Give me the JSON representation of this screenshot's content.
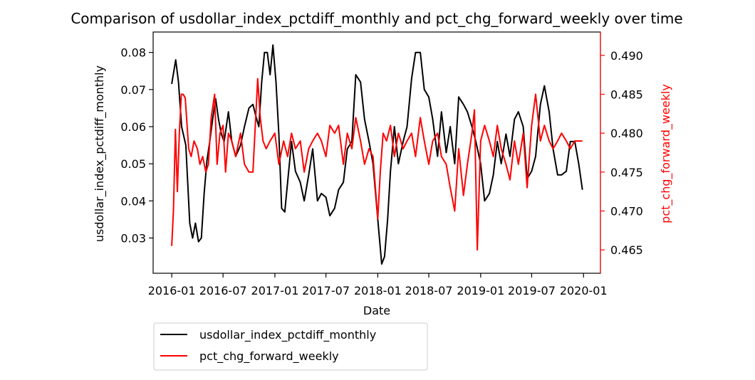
{
  "chart_data": {
    "type": "line",
    "title": "Comparison of usdollar_index_pctdiff_monthly and pct_chg_forward_weekly over time",
    "xlabel": "Date",
    "ylabel_left": "usdollar_index_pctdiff_monthly",
    "ylabel_right": "pct_chg_forward_weekly",
    "x_ticks": [
      "2016-01",
      "2016-07",
      "2017-01",
      "2017-07",
      "2018-01",
      "2018-07",
      "2019-01",
      "2019-07",
      "2020-01"
    ],
    "xlim": [
      "2015-10-27",
      "2020-03-01"
    ],
    "y_left_ticks": [
      0.03,
      0.04,
      0.05,
      0.06,
      0.07,
      0.08
    ],
    "y_left_lim": [
      0.0205,
      0.0855
    ],
    "y_right_ticks": [
      0.465,
      0.47,
      0.475,
      0.48,
      0.485,
      0.49
    ],
    "y_right_lim": [
      0.462,
      0.493
    ],
    "legend_placement": "below-left",
    "grid": false,
    "series": [
      {
        "name": "usdollar_index_pctdiff_monthly",
        "axis": "left",
        "color": "#000000",
        "x": [
          "2016-01-01",
          "2016-01-15",
          "2016-01-25",
          "2016-02-05",
          "2016-02-20",
          "2016-03-05",
          "2016-03-15",
          "2016-03-25",
          "2016-04-05",
          "2016-04-15",
          "2016-04-25",
          "2016-05-05",
          "2016-05-15",
          "2016-05-25",
          "2016-06-05",
          "2016-06-15",
          "2016-06-25",
          "2016-07-05",
          "2016-07-20",
          "2016-08-01",
          "2016-08-15",
          "2016-09-01",
          "2016-09-15",
          "2016-10-01",
          "2016-10-15",
          "2016-10-25",
          "2016-11-05",
          "2016-11-15",
          "2016-11-25",
          "2016-12-05",
          "2016-12-15",
          "2016-12-25",
          "2017-01-05",
          "2017-01-15",
          "2017-01-25",
          "2017-02-05",
          "2017-02-15",
          "2017-03-01",
          "2017-03-15",
          "2017-04-01",
          "2017-04-15",
          "2017-05-01",
          "2017-05-15",
          "2017-06-01",
          "2017-06-15",
          "2017-07-01",
          "2017-07-15",
          "2017-08-01",
          "2017-08-15",
          "2017-09-01",
          "2017-09-15",
          "2017-10-01",
          "2017-10-15",
          "2017-11-01",
          "2017-11-15",
          "2017-12-01",
          "2017-12-15",
          "2018-01-01",
          "2018-01-15",
          "2018-01-25",
          "2018-02-05",
          "2018-02-15",
          "2018-03-01",
          "2018-03-15",
          "2018-04-01",
          "2018-04-15",
          "2018-05-01",
          "2018-05-15",
          "2018-06-01",
          "2018-06-15",
          "2018-07-01",
          "2018-07-15",
          "2018-08-01",
          "2018-08-15",
          "2018-09-01",
          "2018-09-15",
          "2018-10-01",
          "2018-10-15",
          "2018-11-01",
          "2018-11-15",
          "2018-12-01",
          "2018-12-15",
          "2019-01-01",
          "2019-01-15",
          "2019-02-01",
          "2019-02-15",
          "2019-03-01",
          "2019-03-15",
          "2019-04-01",
          "2019-04-15",
          "2019-05-01",
          "2019-05-15",
          "2019-06-01",
          "2019-06-15",
          "2019-07-01",
          "2019-07-15",
          "2019-08-01",
          "2019-08-15",
          "2019-09-01",
          "2019-09-15",
          "2019-10-01",
          "2019-10-15",
          "2019-11-01",
          "2019-11-15",
          "2019-12-01",
          "2019-12-15",
          "2019-12-28"
        ],
        "values": [
          0.0715,
          0.078,
          0.072,
          0.06,
          0.055,
          0.034,
          0.03,
          0.034,
          0.029,
          0.03,
          0.042,
          0.051,
          0.056,
          0.062,
          0.0675,
          0.062,
          0.058,
          0.056,
          0.064,
          0.056,
          0.052,
          0.055,
          0.06,
          0.065,
          0.066,
          0.063,
          0.06,
          0.072,
          0.08,
          0.08,
          0.074,
          0.082,
          0.072,
          0.058,
          0.038,
          0.037,
          0.045,
          0.056,
          0.048,
          0.045,
          0.04,
          0.047,
          0.054,
          0.04,
          0.042,
          0.041,
          0.036,
          0.038,
          0.043,
          0.045,
          0.054,
          0.056,
          0.074,
          0.072,
          0.062,
          0.056,
          0.05,
          0.035,
          0.023,
          0.025,
          0.035,
          0.048,
          0.06,
          0.05,
          0.056,
          0.06,
          0.073,
          0.08,
          0.08,
          0.07,
          0.068,
          0.062,
          0.052,
          0.064,
          0.053,
          0.06,
          0.05,
          0.068,
          0.066,
          0.064,
          0.06,
          0.056,
          0.05,
          0.04,
          0.042,
          0.047,
          0.056,
          0.05,
          0.058,
          0.052,
          0.062,
          0.064,
          0.06,
          0.046,
          0.048,
          0.052,
          0.066,
          0.071,
          0.064,
          0.054,
          0.047,
          0.047,
          0.048,
          0.056,
          0.056,
          0.05,
          0.043
        ]
      },
      {
        "name": "pct_chg_forward_weekly",
        "axis": "right",
        "color": "#ff0000",
        "x": [
          "2016-01-01",
          "2016-01-07",
          "2016-01-14",
          "2016-01-21",
          "2016-01-28",
          "2016-02-04",
          "2016-02-11",
          "2016-02-18",
          "2016-03-01",
          "2016-03-10",
          "2016-03-20",
          "2016-04-01",
          "2016-04-10",
          "2016-04-20",
          "2016-05-01",
          "2016-05-10",
          "2016-05-20",
          "2016-06-01",
          "2016-06-10",
          "2016-06-20",
          "2016-07-01",
          "2016-07-10",
          "2016-07-20",
          "2016-08-01",
          "2016-08-15",
          "2016-09-01",
          "2016-09-15",
          "2016-10-01",
          "2016-10-15",
          "2016-11-01",
          "2016-11-10",
          "2016-11-20",
          "2016-12-01",
          "2016-12-15",
          "2017-01-01",
          "2017-01-15",
          "2017-02-01",
          "2017-02-15",
          "2017-03-01",
          "2017-03-15",
          "2017-04-01",
          "2017-04-15",
          "2017-05-01",
          "2017-05-15",
          "2017-06-01",
          "2017-06-15",
          "2017-07-01",
          "2017-07-15",
          "2017-08-01",
          "2017-08-15",
          "2017-09-01",
          "2017-09-15",
          "2017-10-01",
          "2017-10-15",
          "2017-11-01",
          "2017-11-15",
          "2017-12-01",
          "2017-12-15",
          "2018-01-01",
          "2018-01-10",
          "2018-01-20",
          "2018-02-01",
          "2018-02-15",
          "2018-03-01",
          "2018-03-15",
          "2018-04-01",
          "2018-04-15",
          "2018-05-01",
          "2018-05-15",
          "2018-06-01",
          "2018-06-15",
          "2018-07-01",
          "2018-07-15",
          "2018-08-01",
          "2018-08-15",
          "2018-09-01",
          "2018-09-15",
          "2018-10-01",
          "2018-10-15",
          "2018-11-01",
          "2018-11-15",
          "2018-12-01",
          "2018-12-10",
          "2018-12-20",
          "2019-01-01",
          "2019-01-15",
          "2019-02-01",
          "2019-02-15",
          "2019-03-01",
          "2019-03-15",
          "2019-04-01",
          "2019-04-15",
          "2019-05-01",
          "2019-05-15",
          "2019-06-01",
          "2019-06-15",
          "2019-07-01",
          "2019-07-15",
          "2019-08-01",
          "2019-08-15",
          "2019-09-01",
          "2019-09-15",
          "2019-10-01",
          "2019-10-15",
          "2019-11-01",
          "2019-11-15",
          "2019-12-01",
          "2019-12-15",
          "2019-12-28"
        ],
        "values": [
          0.4655,
          0.47,
          0.4805,
          0.4725,
          0.48,
          0.485,
          0.485,
          0.4845,
          0.478,
          0.477,
          0.479,
          0.478,
          0.476,
          0.477,
          0.475,
          0.476,
          0.482,
          0.485,
          0.476,
          0.48,
          0.481,
          0.475,
          0.48,
          0.479,
          0.477,
          0.48,
          0.476,
          0.475,
          0.475,
          0.487,
          0.482,
          0.479,
          0.478,
          0.479,
          0.48,
          0.476,
          0.479,
          0.477,
          0.48,
          0.478,
          0.479,
          0.475,
          0.478,
          0.479,
          0.48,
          0.479,
          0.477,
          0.481,
          0.48,
          0.481,
          0.476,
          0.48,
          0.478,
          0.482,
          0.479,
          0.476,
          0.478,
          0.477,
          0.469,
          0.475,
          0.48,
          0.479,
          0.481,
          0.477,
          0.48,
          0.478,
          0.479,
          0.48,
          0.477,
          0.482,
          0.479,
          0.476,
          0.479,
          0.48,
          0.477,
          0.476,
          0.473,
          0.47,
          0.478,
          0.472,
          0.476,
          0.48,
          0.483,
          0.465,
          0.479,
          0.481,
          0.479,
          0.477,
          0.481,
          0.478,
          0.476,
          0.474,
          0.479,
          0.476,
          0.48,
          0.473,
          0.481,
          0.485,
          0.479,
          0.481,
          0.479,
          0.478,
          0.479,
          0.48,
          0.479,
          0.478,
          0.479,
          0.479,
          0.479
        ]
      }
    ]
  }
}
